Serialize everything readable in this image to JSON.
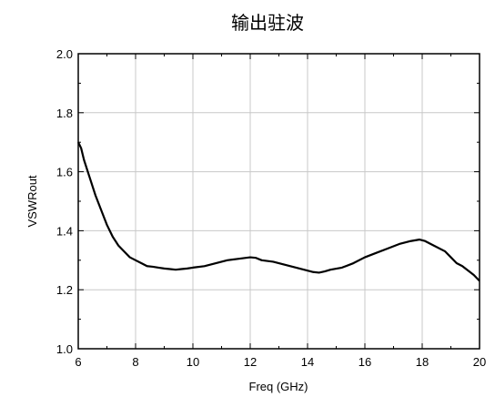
{
  "chart_data": {
    "type": "line",
    "title": "输出驻波",
    "xlabel": "Freq (GHz)",
    "ylabel": "VSWRout",
    "xlim": [
      6,
      20
    ],
    "ylim": [
      1.0,
      2.0
    ],
    "xticks": [
      6,
      8,
      10,
      12,
      14,
      16,
      18,
      20
    ],
    "yticks": [
      1.0,
      1.2,
      1.4,
      1.6,
      1.8,
      2.0
    ],
    "ytick_labels": [
      "1.0",
      "1.2",
      "1.4",
      "1.6",
      "1.8",
      "2.0"
    ],
    "grid": true,
    "series": [
      {
        "color": "#000000",
        "x": [
          6.0,
          6.1,
          6.2,
          6.4,
          6.6,
          6.8,
          7.0,
          7.2,
          7.4,
          7.6,
          7.8,
          8.0,
          8.2,
          8.4,
          8.6,
          8.8,
          9.0,
          9.2,
          9.4,
          9.6,
          9.8,
          10.0,
          10.4,
          10.8,
          11.2,
          11.6,
          12.0,
          12.2,
          12.4,
          12.8,
          13.2,
          13.6,
          14.0,
          14.2,
          14.4,
          14.6,
          14.8,
          15.2,
          15.6,
          16.0,
          16.4,
          16.8,
          17.2,
          17.6,
          17.9,
          18.1,
          18.4,
          18.8,
          19.0,
          19.2,
          19.4,
          19.6,
          19.8,
          20.0
        ],
        "y": [
          1.7,
          1.68,
          1.64,
          1.58,
          1.52,
          1.47,
          1.42,
          1.38,
          1.35,
          1.33,
          1.31,
          1.3,
          1.29,
          1.28,
          1.278,
          1.275,
          1.272,
          1.27,
          1.268,
          1.27,
          1.272,
          1.275,
          1.28,
          1.29,
          1.3,
          1.305,
          1.31,
          1.308,
          1.3,
          1.295,
          1.285,
          1.275,
          1.265,
          1.26,
          1.258,
          1.262,
          1.268,
          1.275,
          1.29,
          1.31,
          1.325,
          1.34,
          1.355,
          1.365,
          1.37,
          1.365,
          1.35,
          1.33,
          1.31,
          1.29,
          1.28,
          1.265,
          1.25,
          1.23
        ]
      }
    ]
  }
}
